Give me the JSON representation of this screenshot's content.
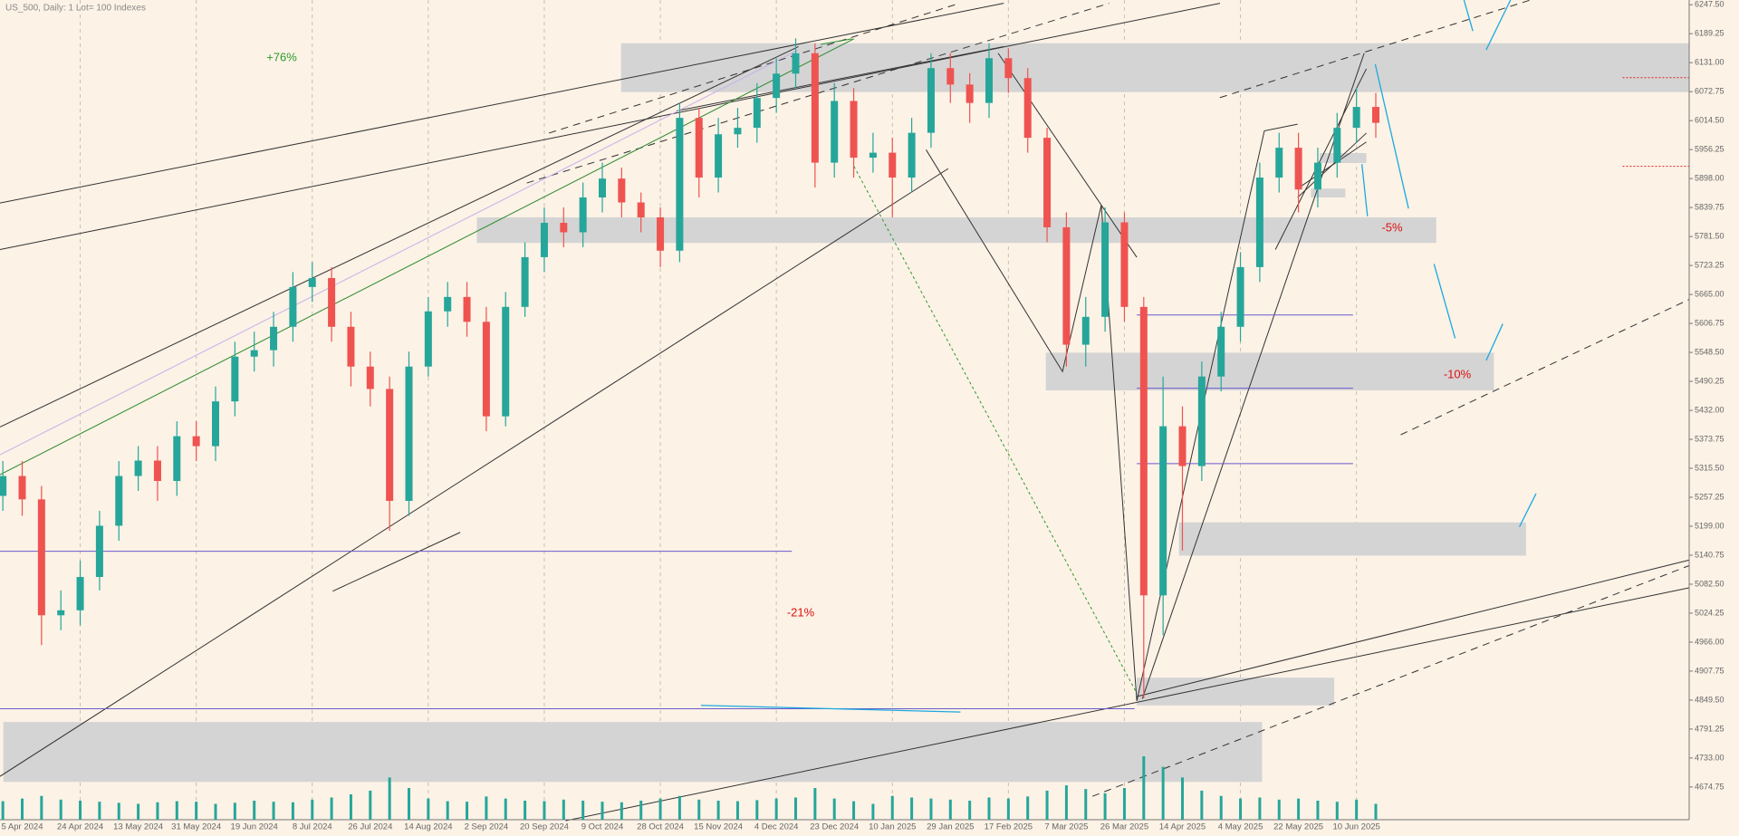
{
  "chart_data": {
    "type": "candlestick",
    "title": "US_500, Daily:  1 Lot= 100 Indexes",
    "categories": [
      null,
      "5 Apr 2024",
      null,
      null,
      "24 Apr 2024",
      null,
      null,
      "13 May 2024",
      null,
      null,
      "31 May 2024",
      null,
      null,
      "19 Jun 2024",
      null,
      null,
      "8 Jul 2024",
      null,
      null,
      "26 Jul 2024",
      null,
      null,
      "14 Aug 2024",
      null,
      null,
      "2 Sep 2024",
      null,
      null,
      "20 Sep 2024",
      null,
      null,
      "9 Oct 2024",
      null,
      null,
      "28 Oct 2024",
      null,
      null,
      "15 Nov 2024",
      null,
      null,
      "4 Dec 2024",
      null,
      null,
      "23 Dec 2024",
      null,
      null,
      "10 Jan 2025",
      null,
      null,
      "29 Jan 2025",
      null,
      null,
      "17 Feb 2025",
      null,
      null,
      "7 Mar 2025",
      null,
      null,
      "26 Mar 2025",
      null,
      null,
      "14 Apr 2025",
      null,
      null,
      "4 May 2025",
      null,
      null,
      "22 May 2025",
      null,
      null,
      "10 Jun 2025",
      null
    ],
    "open": [
      5260,
      5300,
      5253,
      5020,
      5030,
      5097,
      5200,
      5300,
      5331,
      5290,
      5380,
      5360,
      5450,
      5540,
      5553,
      5600,
      5680,
      5698,
      5600,
      5520,
      5475,
      5250,
      5520,
      5631,
      5660,
      5610,
      5420,
      5640,
      5740,
      5809,
      5790,
      5860,
      5898,
      5850,
      5820,
      5753,
      6020,
      5900,
      5987,
      6000,
      6060,
      6109,
      6150,
      5930,
      6054,
      5940,
      5950,
      5900,
      5990,
      6120,
      6087,
      6050,
      6140,
      6100,
      5980,
      5800,
      5564,
      5620,
      5810,
      5640,
      5060,
      5400,
      5320,
      5500,
      5600,
      5720,
      5900,
      5960,
      5876,
      5930,
      6000,
      6042
    ],
    "high": [
      5330,
      5330,
      5280,
      5070,
      5130,
      5230,
      5330,
      5360,
      5360,
      5410,
      5410,
      5480,
      5570,
      5590,
      5630,
      5710,
      5730,
      5720,
      5630,
      5550,
      5500,
      5550,
      5660,
      5690,
      5690,
      5640,
      5670,
      5770,
      5840,
      5840,
      5890,
      5930,
      5920,
      5870,
      5840,
      6050,
      6040,
      6020,
      6040,
      6090,
      6140,
      6180,
      6170,
      6090,
      6080,
      5990,
      5980,
      6020,
      6150,
      6150,
      6110,
      6170,
      6160,
      6120,
      6000,
      5830,
      5660,
      5840,
      5830,
      5660,
      5500,
      5440,
      5530,
      5630,
      5750,
      5930,
      5990,
      5990,
      5960,
      6030,
      6080,
      6070
    ],
    "low": [
      5230,
      5220,
      4960,
      4990,
      5000,
      5070,
      5170,
      5270,
      5250,
      5260,
      5330,
      5330,
      5420,
      5510,
      5520,
      5570,
      5650,
      5570,
      5480,
      5440,
      5190,
      5220,
      5500,
      5600,
      5580,
      5390,
      5400,
      5620,
      5710,
      5760,
      5760,
      5830,
      5820,
      5790,
      5720,
      5730,
      5860,
      5870,
      5960,
      5970,
      6030,
      6080,
      5880,
      5900,
      5900,
      5910,
      5820,
      5870,
      5960,
      6050,
      6010,
      6020,
      6070,
      5950,
      5770,
      5520,
      5520,
      5590,
      5610,
      4853,
      4980,
      5150,
      5290,
      5470,
      5570,
      5690,
      5870,
      5830,
      5840,
      5900,
      5970,
      5980
    ],
    "close": [
      5300,
      5253,
      5020,
      5030,
      5097,
      5200,
      5300,
      5331,
      5290,
      5380,
      5360,
      5450,
      5540,
      5553,
      5600,
      5680,
      5698,
      5600,
      5520,
      5475,
      5250,
      5520,
      5631,
      5660,
      5610,
      5420,
      5640,
      5740,
      5809,
      5790,
      5860,
      5898,
      5850,
      5820,
      5753,
      6020,
      5900,
      5987,
      6000,
      6060,
      6109,
      6150,
      5930,
      6054,
      5940,
      5950,
      5900,
      5990,
      6120,
      6087,
      6050,
      6140,
      6100,
      5980,
      5800,
      5564,
      5620,
      5810,
      5640,
      5060,
      5400,
      5320,
      5500,
      5600,
      5720,
      5900,
      5960,
      5876,
      5930,
      6000,
      6042,
      6010
    ],
    "volume": [
      35,
      40,
      45,
      38,
      36,
      34,
      32,
      30,
      33,
      35,
      34,
      30,
      32,
      36,
      34,
      33,
      38,
      42,
      48,
      55,
      80,
      60,
      40,
      35,
      34,
      44,
      40,
      36,
      35,
      38,
      36,
      34,
      33,
      36,
      40,
      45,
      38,
      36,
      35,
      37,
      40,
      42,
      60,
      40,
      35,
      30,
      45,
      42,
      40,
      38,
      36,
      42,
      40,
      44,
      55,
      65,
      58,
      50,
      60,
      120,
      100,
      80,
      55,
      45,
      40,
      42,
      38,
      40,
      36,
      34,
      38,
      30
    ],
    "up_color": "#26a69a",
    "down_color": "#ef5350",
    "volume_color": "#26a69a",
    "ylim": [
      4609,
      6257
    ],
    "yticks": [
      {
        "value": 6247.5,
        "label": "6247.50"
      },
      {
        "value": 6189.25,
        "label": "6189.25"
      },
      {
        "value": 6131,
        "label": "6131.00"
      },
      {
        "value": 6072.75,
        "label": "6072.75"
      },
      {
        "value": 6014.5,
        "label": "6014.50"
      },
      {
        "value": 5956.25,
        "label": "5956.25"
      },
      {
        "value": 5898,
        "label": "5898.00"
      },
      {
        "value": 5839.75,
        "label": "5839.75"
      },
      {
        "value": 5781.5,
        "label": "5781.50"
      },
      {
        "value": 5723.25,
        "label": "5723.25"
      },
      {
        "value": 5665,
        "label": "5665.00"
      },
      {
        "value": 5606.75,
        "label": "5606.75"
      },
      {
        "value": 5548.5,
        "label": "5548.50"
      },
      {
        "value": 5490.25,
        "label": "5490.25"
      },
      {
        "value": 5432,
        "label": "5432.00"
      },
      {
        "value": 5373.75,
        "label": "5373.75"
      },
      {
        "value": 5315.5,
        "label": "5315.50"
      },
      {
        "value": 5257.25,
        "label": "5257.25"
      },
      {
        "value": 5199,
        "label": "5199.00"
      },
      {
        "value": 5140.75,
        "label": "5140.75"
      },
      {
        "value": 5082.5,
        "label": "5082.50"
      },
      {
        "value": 5024.25,
        "label": "5024.25"
      },
      {
        "value": 4966,
        "label": "4966.00"
      },
      {
        "value": 4907.75,
        "label": "4907.75"
      },
      {
        "value": 4849.5,
        "label": "4849.50"
      },
      {
        "value": 4791.25,
        "label": "4791.25"
      },
      {
        "value": 4733,
        "label": "4733.00"
      },
      {
        "value": 4674.75,
        "label": "4674.75"
      }
    ],
    "grid": true,
    "annotations": [
      "+76%",
      "-21%",
      "-5%",
      "-10%"
    ]
  }
}
